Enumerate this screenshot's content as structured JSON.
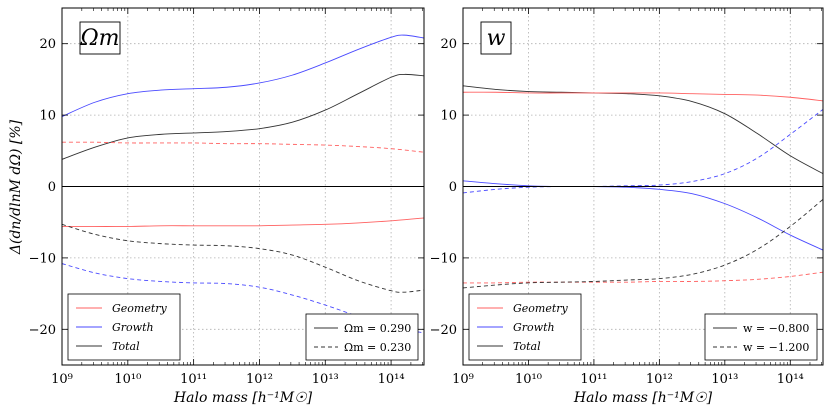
{
  "chart_data": [
    {
      "type": "line",
      "panel_label": "Ωm",
      "xlabel": "Halo mass [h⁻¹M☉]",
      "ylabel": "Δ(dn/dlnM dΩ) [%]",
      "xscale": "log",
      "xlim_log10": [
        9,
        14.5
      ],
      "ylim": [
        -25,
        25
      ],
      "xticks": [
        "10⁹",
        "10¹⁰",
        "10¹¹",
        "10¹²",
        "10¹³",
        "10¹⁴"
      ],
      "yticks": [
        "20",
        "10",
        "0",
        "−10",
        "−20"
      ],
      "ytick_values": [
        20,
        10,
        0,
        -10,
        -20
      ],
      "legend_components": [
        "Geometry",
        "Growth",
        "Total"
      ],
      "legend_models": [
        "Ωm = 0.290",
        "Ωm = 0.230"
      ],
      "series": [
        {
          "name": "Growth (Ωm = 0.290)",
          "color": "#4a4aff",
          "dash": "solid",
          "x": [
            9,
            9.5,
            10,
            10.5,
            11,
            11.5,
            12,
            12.5,
            13,
            13.5,
            14,
            14.2,
            14.5
          ],
          "y": [
            9.8,
            11.8,
            13.0,
            13.5,
            13.7,
            13.9,
            14.5,
            15.6,
            17.3,
            19.2,
            20.9,
            21.2,
            20.8
          ]
        },
        {
          "name": "Total (Ωm = 0.290)",
          "color": "#333333",
          "dash": "solid",
          "x": [
            9,
            9.5,
            10,
            10.5,
            11,
            11.5,
            12,
            12.5,
            13,
            13.5,
            14,
            14.2,
            14.5
          ],
          "y": [
            3.8,
            5.5,
            6.8,
            7.3,
            7.5,
            7.7,
            8.1,
            9.0,
            10.7,
            13.0,
            15.3,
            15.7,
            15.5
          ]
        },
        {
          "name": "Geometry (Ωm = 0.230)",
          "color": "#ff6060",
          "dash": "dashed",
          "x": [
            9,
            9.5,
            10,
            10.5,
            11,
            11.5,
            12,
            12.5,
            13,
            13.5,
            14,
            14.5
          ],
          "y": [
            6.2,
            6.2,
            6.1,
            6.1,
            6.1,
            6.0,
            6.0,
            5.9,
            5.8,
            5.6,
            5.3,
            4.8
          ]
        },
        {
          "name": "Geometry (Ωm = 0.290)",
          "color": "#ff6060",
          "dash": "solid",
          "x": [
            9,
            9.5,
            10,
            10.5,
            11,
            11.5,
            12,
            12.5,
            13,
            13.5,
            14,
            14.5
          ],
          "y": [
            -5.6,
            -5.6,
            -5.6,
            -5.5,
            -5.5,
            -5.5,
            -5.5,
            -5.4,
            -5.3,
            -5.1,
            -4.8,
            -4.4
          ]
        },
        {
          "name": "Total (Ωm = 0.230)",
          "color": "#333333",
          "dash": "dashed",
          "x": [
            9,
            9.5,
            10,
            10.5,
            11,
            11.5,
            12,
            12.5,
            13,
            13.5,
            14,
            14.2,
            14.5
          ],
          "y": [
            -5.3,
            -6.7,
            -7.6,
            -8.0,
            -8.2,
            -8.3,
            -8.7,
            -9.6,
            -11.3,
            -13.2,
            -14.6,
            -14.8,
            -14.5
          ]
        },
        {
          "name": "Growth (Ωm = 0.230)",
          "color": "#4a4aff",
          "dash": "dashed",
          "x": [
            9,
            9.5,
            10,
            10.5,
            11,
            11.5,
            12,
            12.5,
            13,
            13.5,
            14,
            14.5
          ],
          "y": [
            -10.8,
            -12.1,
            -12.9,
            -13.3,
            -13.5,
            -13.6,
            -14.1,
            -15.2,
            -16.6,
            -18.2,
            -19.7,
            -20.5
          ]
        },
        {
          "name": "zero",
          "color": "#000000",
          "dash": "solid",
          "x": [
            9,
            14.5
          ],
          "y": [
            0,
            0
          ]
        }
      ]
    },
    {
      "type": "line",
      "panel_label": "w",
      "xlabel": "Halo mass [h⁻¹M☉]",
      "xscale": "log",
      "xlim_log10": [
        9,
        14.5
      ],
      "ylim": [
        -25,
        25
      ],
      "xticks": [
        "10⁹",
        "10¹⁰",
        "10¹¹",
        "10¹²",
        "10¹³",
        "10¹⁴"
      ],
      "yticks": [
        "20",
        "10",
        "0",
        "−10",
        "−20"
      ],
      "ytick_values": [
        20,
        10,
        0,
        -10,
        -20
      ],
      "legend_components": [
        "Geometry",
        "Growth",
        "Total"
      ],
      "legend_models": [
        "w = −0.800",
        "w = −1.200"
      ],
      "series": [
        {
          "name": "Total (w = −0.800)",
          "color": "#333333",
          "dash": "solid",
          "x": [
            9,
            9.5,
            10,
            10.5,
            11,
            11.5,
            12,
            12.5,
            13,
            13.5,
            14,
            14.5
          ],
          "y": [
            14.1,
            13.6,
            13.3,
            13.2,
            13.1,
            13.0,
            12.7,
            11.9,
            10.2,
            7.4,
            4.3,
            1.8
          ]
        },
        {
          "name": "Geometry (w = −0.800)",
          "color": "#ff6060",
          "dash": "solid",
          "x": [
            9,
            9.5,
            10,
            10.5,
            11,
            11.5,
            12,
            12.5,
            13,
            13.5,
            14,
            14.5
          ],
          "y": [
            13.2,
            13.2,
            13.1,
            13.1,
            13.1,
            13.1,
            13.1,
            13.0,
            12.9,
            12.8,
            12.5,
            12.0
          ]
        },
        {
          "name": "Growth (w = −1.200)",
          "color": "#4a4aff",
          "dash": "dashed",
          "x": [
            9,
            9.5,
            10,
            10.5,
            11,
            11.5,
            12,
            12.5,
            13,
            13.5,
            14,
            14.5
          ],
          "y": [
            -0.9,
            -0.4,
            -0.1,
            0,
            0,
            0.1,
            0.2,
            0.7,
            1.8,
            4.0,
            7.3,
            10.8
          ]
        },
        {
          "name": "Growth (w = −0.800)",
          "color": "#4a4aff",
          "dash": "solid",
          "x": [
            9,
            9.5,
            10,
            10.5,
            11,
            11.5,
            12,
            12.5,
            13,
            13.5,
            14,
            14.5
          ],
          "y": [
            0.8,
            0.4,
            0.1,
            0,
            0,
            -0.1,
            -0.4,
            -1.0,
            -2.4,
            -4.4,
            -6.8,
            -8.9
          ]
        },
        {
          "name": "Geometry (w = −1.200)",
          "color": "#ff6060",
          "dash": "dashed",
          "x": [
            9,
            9.5,
            10,
            10.5,
            11,
            11.5,
            12,
            12.5,
            13,
            13.5,
            14,
            14.5
          ],
          "y": [
            -13.5,
            -13.5,
            -13.4,
            -13.4,
            -13.4,
            -13.4,
            -13.3,
            -13.3,
            -13.2,
            -13.0,
            -12.6,
            -12.0
          ]
        },
        {
          "name": "Total (w = −1.200)",
          "color": "#333333",
          "dash": "dashed",
          "x": [
            9,
            9.5,
            10,
            10.5,
            11,
            11.5,
            12,
            12.5,
            13,
            13.5,
            14,
            14.5
          ],
          "y": [
            -14.2,
            -13.8,
            -13.5,
            -13.4,
            -13.3,
            -13.1,
            -12.9,
            -12.3,
            -11.0,
            -8.8,
            -5.6,
            -1.8
          ]
        },
        {
          "name": "zero",
          "color": "#000000",
          "dash": "solid",
          "x": [
            9,
            14.5
          ],
          "y": [
            0,
            0
          ]
        }
      ]
    }
  ],
  "legend_colors": {
    "Geometry": "#ff6060",
    "Growth": "#4a4aff",
    "Total": "#333333"
  }
}
